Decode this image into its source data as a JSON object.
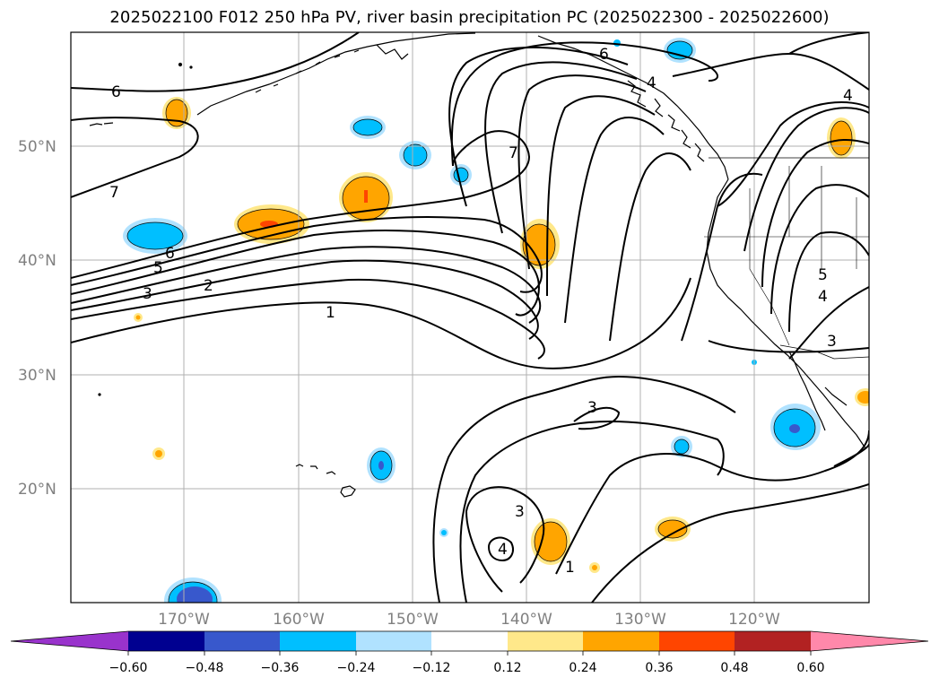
{
  "title": "2025022100 F012 250 hPa PV, river basin precipitation PC (2025022300 - 2025022600)",
  "map": {
    "lat_labels": [
      "50°N",
      "40°N",
      "30°N",
      "20°N"
    ],
    "lon_labels": [
      "170°W",
      "160°W",
      "150°W",
      "140°W",
      "130°W",
      "120°W"
    ],
    "contour_labels": [
      "6",
      "7",
      "6",
      "5",
      "3",
      "2",
      "1",
      "7",
      "4",
      "4",
      "3",
      "3",
      "4",
      "1",
      "5",
      "4",
      "3",
      "6"
    ]
  },
  "colorbar": {
    "ticks": [
      "−0.60",
      "−0.48",
      "−0.36",
      "−0.24",
      "−0.12",
      "0.12",
      "0.24",
      "0.36",
      "0.48",
      "0.60"
    ],
    "colors": [
      "#9933cc",
      "#000090",
      "#3858cc",
      "#00bfff",
      "#b0e2ff",
      "#ffffff",
      "#ffe88a",
      "#ffa500",
      "#ff4500",
      "#b22222",
      "#ff88aa"
    ]
  },
  "colors": {
    "positive_light": "#ffe88a",
    "positive_mid": "#ffa500",
    "positive_strong": "#ff4500",
    "negative_light": "#b0e2ff",
    "negative_mid": "#00bfff",
    "negative_strong": "#3858cc"
  }
}
